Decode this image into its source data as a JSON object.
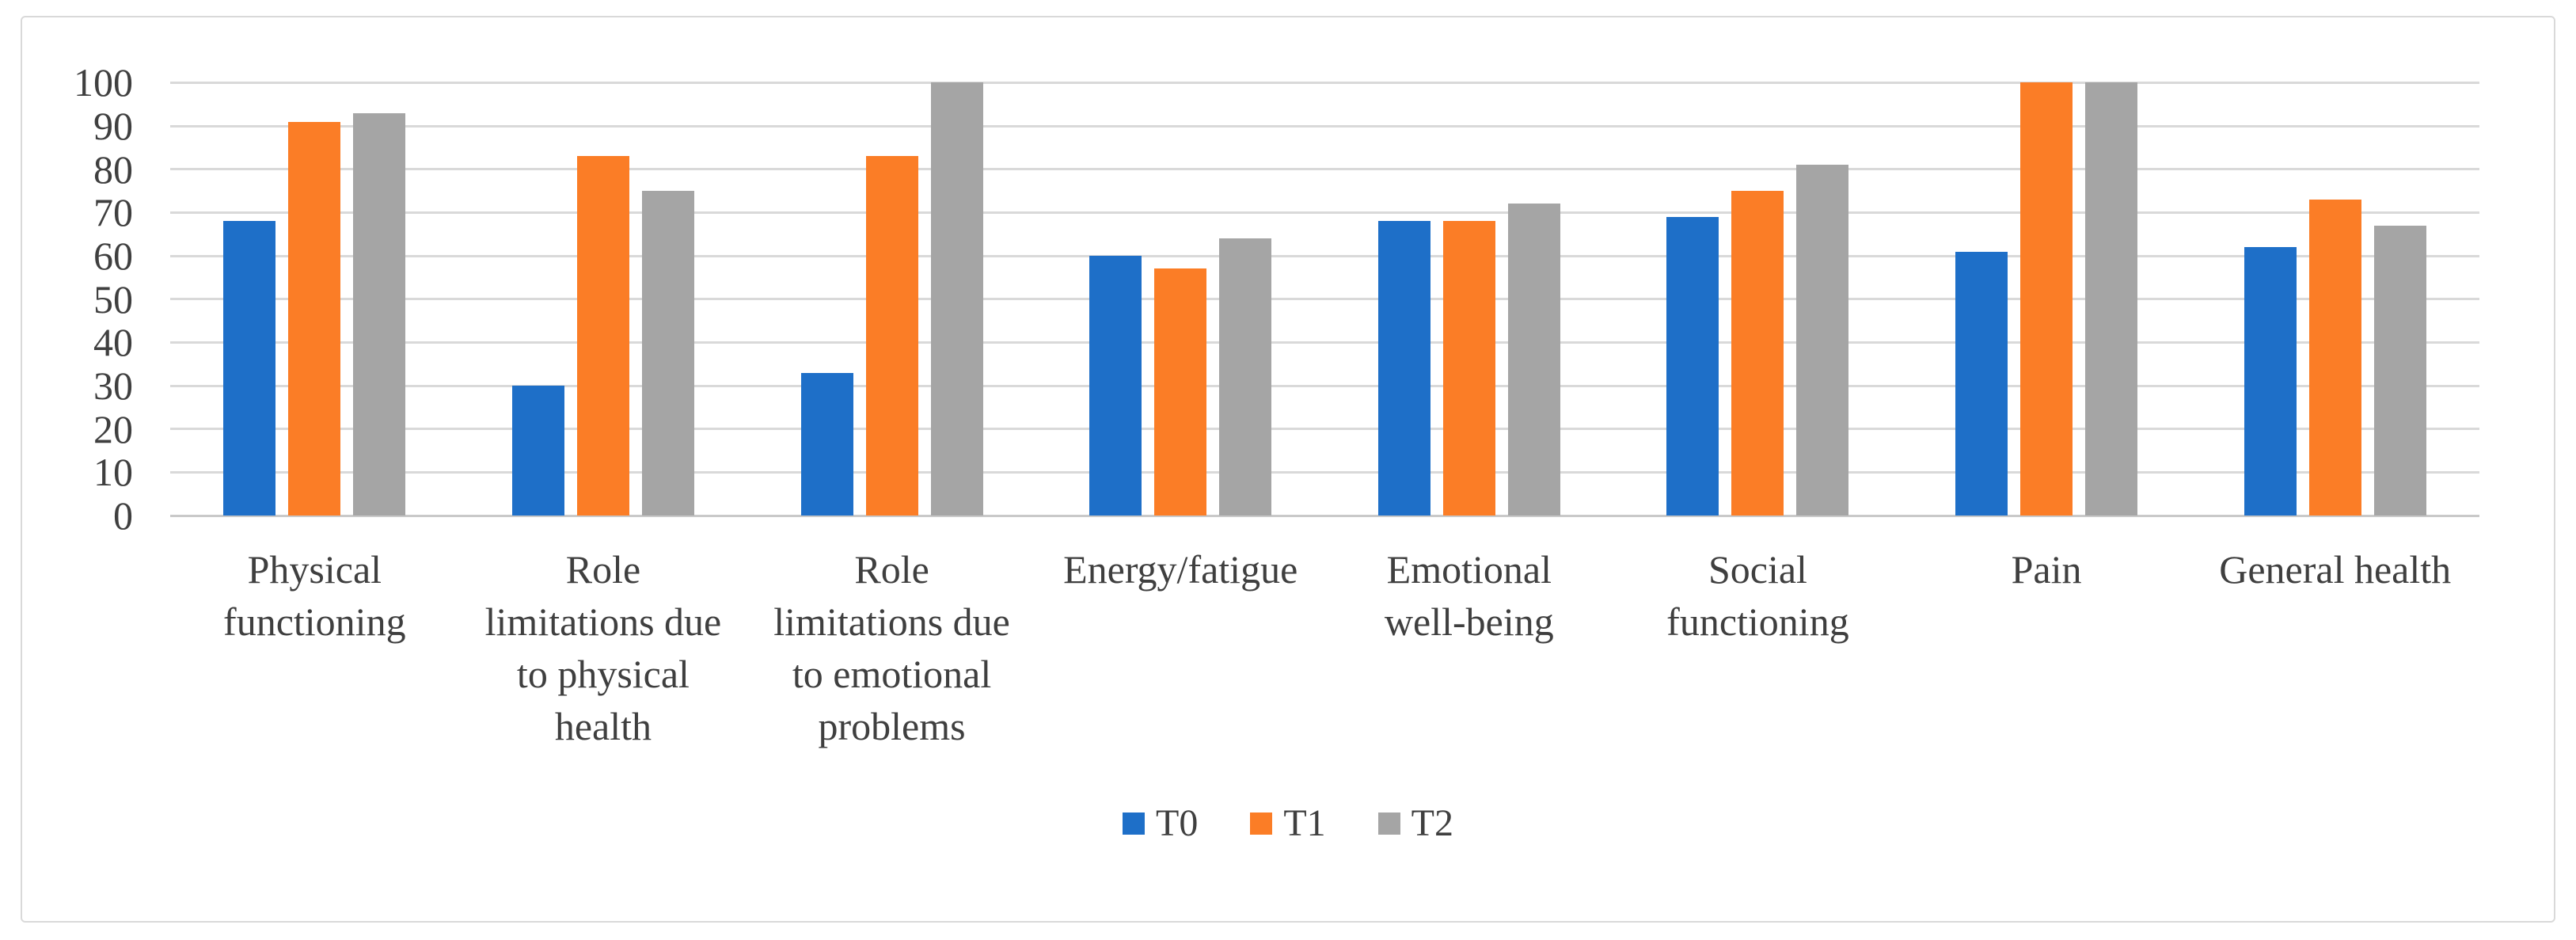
{
  "chart_data": {
    "type": "bar",
    "title": "",
    "xlabel": "",
    "ylabel": "",
    "ylim": [
      0,
      100
    ],
    "yticks": [
      0,
      10,
      20,
      30,
      40,
      50,
      60,
      70,
      80,
      90,
      100
    ],
    "grid": true,
    "legend_position": "bottom-center",
    "categories": [
      "Physical functioning",
      "Role limitations due to physical health",
      "Role limitations due to emotional problems",
      "Energy/fatigue",
      "Emotional well-being",
      "Social functioning",
      "Pain",
      "General health"
    ],
    "category_display": [
      "Physical\nfunctioning",
      "Role\nlimitations due\nto physical\nhealth",
      "Role\nlimitations due\nto emotional\nproblems",
      "Energy/fatigue",
      "Emotional\nwell-being",
      "Social\nfunctioning",
      "Pain",
      "General health"
    ],
    "series": [
      {
        "name": "T0",
        "color": "#1e6fc8",
        "values": [
          68,
          30,
          33,
          60,
          68,
          69,
          61,
          62
        ]
      },
      {
        "name": "T1",
        "color": "#fb7d26",
        "values": [
          91,
          83,
          83,
          57,
          68,
          75,
          100,
          73
        ]
      },
      {
        "name": "T2",
        "color": "#a5a5a5",
        "values": [
          93,
          75,
          100,
          64,
          72,
          81,
          100,
          67
        ]
      }
    ]
  },
  "style_colors": {
    "gridline": "#d9d9d9",
    "axis_line": "#c9c9c9",
    "text": "#3f3f3f",
    "frame_border": "#d9d9d9"
  }
}
